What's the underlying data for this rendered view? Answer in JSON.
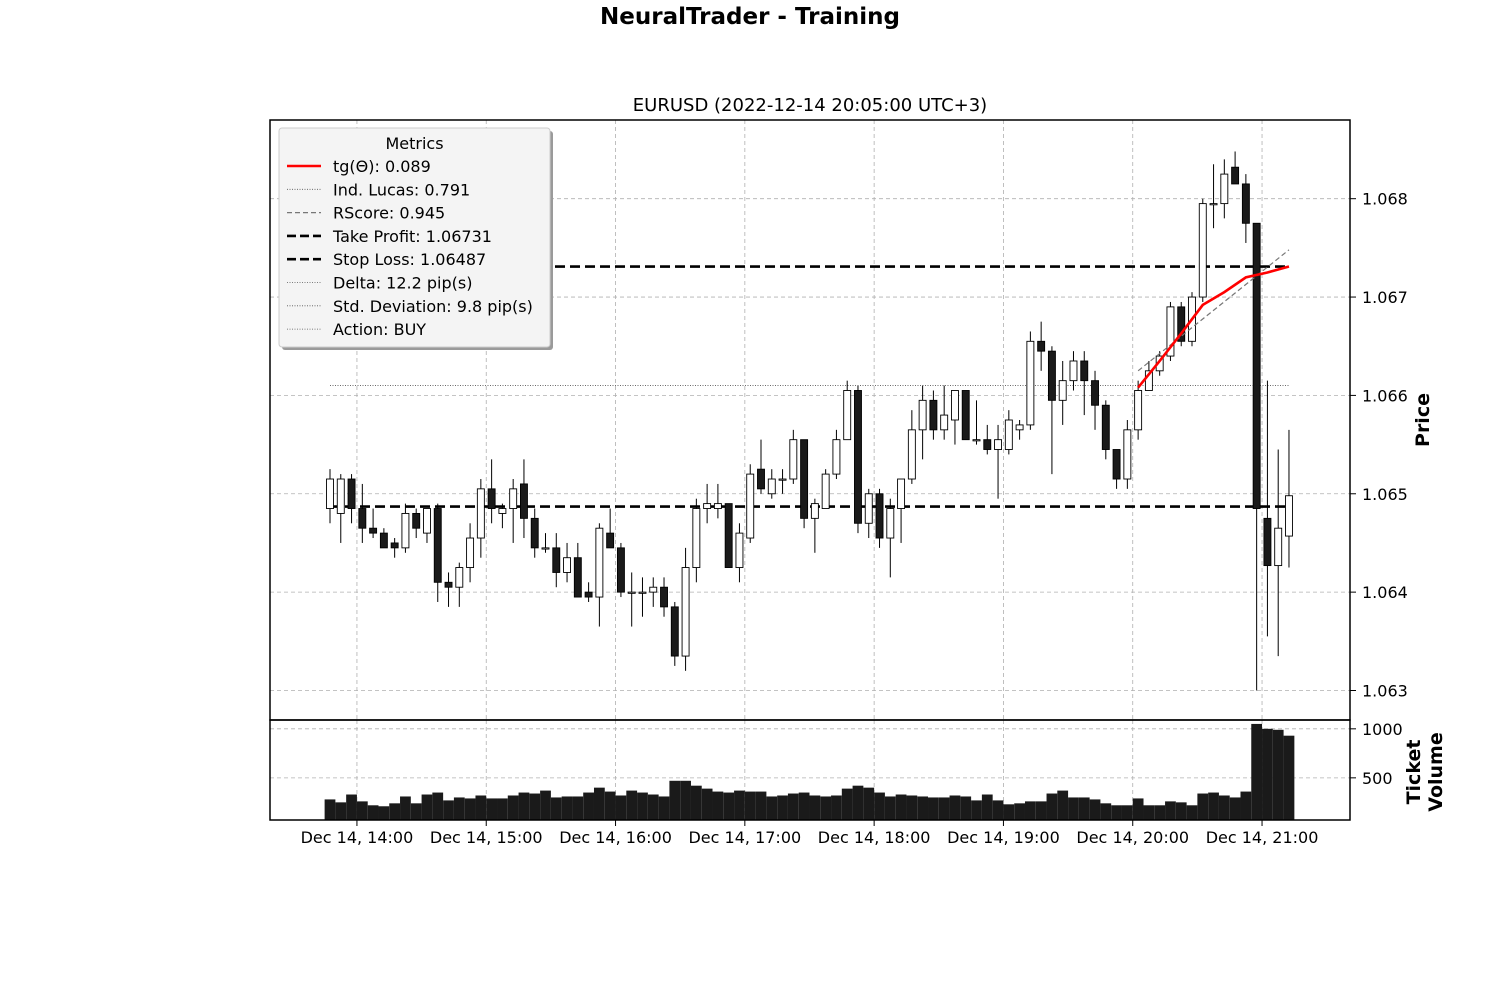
{
  "figure": {
    "suptitle": "NeuralTrader - Training"
  },
  "chart_data": {
    "type": "candlestick",
    "title": "EURUSD (2022-12-14 20:05:00 UTC+3)",
    "price_axis": {
      "label": "Price",
      "ylim": [
        1.0627,
        1.0688
      ],
      "ticks": [
        "1.063",
        "1.064",
        "1.065",
        "1.066",
        "1.067",
        "1.068"
      ],
      "grid": true,
      "side": "right"
    },
    "volume_axis": {
      "label": "Ticket\nVolume",
      "ylim": [
        70,
        1090
      ],
      "ticks": [
        "500",
        "1000"
      ],
      "grid": true,
      "side": "right"
    },
    "x_axis": {
      "tick_labels": [
        "Dec 14, 14:00",
        "Dec 14, 15:00",
        "Dec 14, 16:00",
        "Dec 14, 17:00",
        "Dec 14, 18:00",
        "Dec 14, 19:00",
        "Dec 14, 20:00",
        "Dec 14, 21:00"
      ],
      "tick_positions": [
        2.5,
        14.5,
        26.5,
        38.5,
        50.5,
        62.5,
        74.5,
        86.5
      ],
      "grid": true
    },
    "candles": [
      [
        1.06485,
        1.06525,
        1.0647,
        1.06515,
        280
      ],
      [
        1.0648,
        1.0652,
        1.0645,
        1.06515,
        250
      ],
      [
        1.06515,
        1.0652,
        1.0647,
        1.06485,
        330
      ],
      [
        1.06485,
        1.0651,
        1.0645,
        1.06465,
        260
      ],
      [
        1.06465,
        1.06485,
        1.06455,
        1.0646,
        220
      ],
      [
        1.0646,
        1.06465,
        1.06445,
        1.06445,
        210
      ],
      [
        1.0645,
        1.06455,
        1.06435,
        1.06445,
        240
      ],
      [
        1.06445,
        1.0649,
        1.0644,
        1.0648,
        310
      ],
      [
        1.0648,
        1.06485,
        1.06455,
        1.06465,
        240
      ],
      [
        1.0646,
        1.06485,
        1.0645,
        1.06485,
        330
      ],
      [
        1.06485,
        1.0649,
        1.0639,
        1.0641,
        350
      ],
      [
        1.0641,
        1.0642,
        1.06385,
        1.06405,
        270
      ],
      [
        1.06405,
        1.0643,
        1.06385,
        1.06425,
        300
      ],
      [
        1.06425,
        1.0647,
        1.0641,
        1.06455,
        290
      ],
      [
        1.06455,
        1.06515,
        1.06435,
        1.06505,
        320
      ],
      [
        1.06505,
        1.06535,
        1.0647,
        1.06485,
        290
      ],
      [
        1.0648,
        1.0649,
        1.06465,
        1.06485,
        290
      ],
      [
        1.06485,
        1.06515,
        1.0645,
        1.06505,
        320
      ],
      [
        1.0651,
        1.06535,
        1.06455,
        1.06475,
        350
      ],
      [
        1.06475,
        1.06485,
        1.06435,
        1.06445,
        340
      ],
      [
        1.06445,
        1.0646,
        1.0644,
        1.06445,
        370
      ],
      [
        1.06445,
        1.0646,
        1.06405,
        1.0642,
        300
      ],
      [
        1.0642,
        1.0645,
        1.0641,
        1.06435,
        310
      ],
      [
        1.06435,
        1.0645,
        1.06395,
        1.06395,
        310
      ],
      [
        1.064,
        1.0641,
        1.0639,
        1.06395,
        350
      ],
      [
        1.06395,
        1.0647,
        1.06365,
        1.06465,
        400
      ],
      [
        1.0646,
        1.06485,
        1.0645,
        1.06445,
        360
      ],
      [
        1.06445,
        1.0645,
        1.06395,
        1.064,
        320
      ],
      [
        1.064,
        1.0642,
        1.06365,
        1.064,
        370
      ],
      [
        1.064,
        1.06415,
        1.06375,
        1.064,
        350
      ],
      [
        1.064,
        1.06415,
        1.06385,
        1.06405,
        330
      ],
      [
        1.06405,
        1.06415,
        1.06375,
        1.06385,
        310
      ],
      [
        1.06385,
        1.0639,
        1.06325,
        1.06335,
        470
      ],
      [
        1.06335,
        1.06445,
        1.0632,
        1.06425,
        470
      ],
      [
        1.06425,
        1.06495,
        1.0641,
        1.06485,
        420
      ],
      [
        1.06485,
        1.0651,
        1.0647,
        1.0649,
        390
      ],
      [
        1.06485,
        1.0651,
        1.06475,
        1.0649,
        360
      ],
      [
        1.0649,
        1.0649,
        1.0643,
        1.06425,
        350
      ],
      [
        1.06425,
        1.0647,
        1.0641,
        1.0646,
        370
      ],
      [
        1.06455,
        1.0653,
        1.0645,
        1.0652,
        360
      ],
      [
        1.06525,
        1.06555,
        1.065,
        1.06505,
        360
      ],
      [
        1.065,
        1.06525,
        1.06495,
        1.06515,
        310
      ],
      [
        1.06515,
        1.06525,
        1.065,
        1.06515,
        320
      ],
      [
        1.06515,
        1.06565,
        1.0651,
        1.06555,
        340
      ],
      [
        1.06555,
        1.06555,
        1.06465,
        1.06475,
        350
      ],
      [
        1.06475,
        1.06495,
        1.0644,
        1.0649,
        320
      ],
      [
        1.06485,
        1.06525,
        1.06485,
        1.0652,
        310
      ],
      [
        1.0652,
        1.06565,
        1.06515,
        1.06555,
        320
      ],
      [
        1.06555,
        1.06615,
        1.06555,
        1.06605,
        390
      ],
      [
        1.06605,
        1.0661,
        1.0646,
        1.0647,
        420
      ],
      [
        1.0647,
        1.06505,
        1.06455,
        1.065,
        400
      ],
      [
        1.065,
        1.06505,
        1.06445,
        1.06455,
        350
      ],
      [
        1.06455,
        1.06495,
        1.06415,
        1.06485,
        310
      ],
      [
        1.06485,
        1.06515,
        1.0645,
        1.06515,
        330
      ],
      [
        1.06515,
        1.06585,
        1.0651,
        1.06565,
        320
      ],
      [
        1.06565,
        1.0661,
        1.06535,
        1.06595,
        310
      ],
      [
        1.06595,
        1.06605,
        1.06555,
        1.06565,
        300
      ],
      [
        1.06565,
        1.0661,
        1.06555,
        1.0658,
        300
      ],
      [
        1.06575,
        1.06605,
        1.0655,
        1.06605,
        320
      ],
      [
        1.06605,
        1.06605,
        1.06555,
        1.06555,
        310
      ],
      [
        1.06555,
        1.06595,
        1.0655,
        1.06555,
        270
      ],
      [
        1.06555,
        1.0657,
        1.0654,
        1.06545,
        330
      ],
      [
        1.06545,
        1.0657,
        1.06495,
        1.06555,
        270
      ],
      [
        1.06545,
        1.06585,
        1.0654,
        1.06575,
        230
      ],
      [
        1.06565,
        1.06575,
        1.06555,
        1.0657,
        240
      ],
      [
        1.0657,
        1.06665,
        1.06565,
        1.06655,
        260
      ],
      [
        1.06655,
        1.06675,
        1.06625,
        1.06645,
        260
      ],
      [
        1.06645,
        1.0665,
        1.0652,
        1.06595,
        340
      ],
      [
        1.06595,
        1.06635,
        1.0657,
        1.06615,
        370
      ],
      [
        1.06615,
        1.06645,
        1.06605,
        1.06635,
        300
      ],
      [
        1.06635,
        1.06645,
        1.0658,
        1.06615,
        300
      ],
      [
        1.06615,
        1.06625,
        1.06565,
        1.0659,
        280
      ],
      [
        1.0659,
        1.06595,
        1.06535,
        1.06545,
        240
      ],
      [
        1.06545,
        1.06545,
        1.06505,
        1.06515,
        220
      ],
      [
        1.06515,
        1.06575,
        1.06505,
        1.06565,
        220
      ],
      [
        1.06565,
        1.06615,
        1.06555,
        1.06605,
        290
      ],
      [
        1.06605,
        1.06635,
        1.06605,
        1.06625,
        220
      ],
      [
        1.06625,
        1.06645,
        1.0662,
        1.0664,
        220
      ],
      [
        1.0664,
        1.06695,
        1.06635,
        1.0669,
        260
      ],
      [
        1.0669,
        1.06695,
        1.0665,
        1.06655,
        250
      ],
      [
        1.06655,
        1.06705,
        1.0665,
        1.067,
        220
      ],
      [
        1.067,
        1.068,
        1.06695,
        1.06795,
        340
      ],
      [
        1.06795,
        1.06835,
        1.0677,
        1.06795,
        350
      ],
      [
        1.06795,
        1.0684,
        1.0678,
        1.06825,
        320
      ],
      [
        1.06832,
        1.06848,
        1.06815,
        1.06815,
        300
      ],
      [
        1.06815,
        1.06825,
        1.06755,
        1.06775,
        360
      ],
      [
        1.06775,
        1.06775,
        1.063,
        1.06485,
        1050
      ],
      [
        1.06475,
        1.06615,
        1.06355,
        1.06427,
        1000
      ],
      [
        1.06427,
        1.06545,
        1.06335,
        1.06465,
        990
      ],
      [
        1.06457,
        1.06565,
        1.06425,
        1.06498,
        930
      ]
    ],
    "lines": {
      "take_profit": {
        "start": 0,
        "end": 89,
        "value": 1.06731,
        "color": "#000000",
        "dash": "dashed"
      },
      "stop_loss": {
        "start": 0,
        "end": 89,
        "value": 1.06487,
        "color": "#000000",
        "dash": "dashed"
      },
      "ind_lucas": {
        "start": 0,
        "end": 89,
        "value": 1.0661,
        "color": "#555555",
        "dash": "dotted"
      },
      "tg_theta": {
        "color": "#ff0000",
        "x": [
          75,
          77,
          79,
          81,
          83,
          85,
          87,
          88,
          89
        ],
        "y": [
          1.06608,
          1.06635,
          1.06663,
          1.06692,
          1.06705,
          1.0672,
          1.06725,
          1.06728,
          1.06731
        ]
      },
      "rscore": {
        "color": "#777777",
        "x": [
          75,
          89
        ],
        "y": [
          1.06625,
          1.06748
        ]
      }
    },
    "legend": {
      "title": "Metrics",
      "placement": "upper-left",
      "entries": [
        {
          "label": "tg(Θ): 0.089",
          "style": "solid",
          "color": "#ff0000"
        },
        {
          "label": "Ind. Lucas: 0.791",
          "style": "dotted",
          "color": "#555555"
        },
        {
          "label": "RScore: 0.945",
          "style": "dashed-thin",
          "color": "#777777"
        },
        {
          "label": "Take Profit: 1.06731",
          "style": "dashed-bold",
          "color": "#000000"
        },
        {
          "label": "Stop Loss: 1.06487",
          "style": "dashed-bold",
          "color": "#000000"
        },
        {
          "label": "Delta: 12.2 pip(s)",
          "style": "dotted",
          "color": "#555555"
        },
        {
          "label": "Std. Deviation: 9.8 pip(s)",
          "style": "dotted",
          "color": "#555555"
        },
        {
          "label": "Action: BUY",
          "style": "dotted",
          "color": "#555555"
        }
      ]
    },
    "colors": {
      "bull_body": "#ffffff",
      "bear_body": "#1a1a1a",
      "wick": "#000000",
      "volume_bar": "#1a1a1a",
      "grid": "#b0b0b0"
    }
  }
}
